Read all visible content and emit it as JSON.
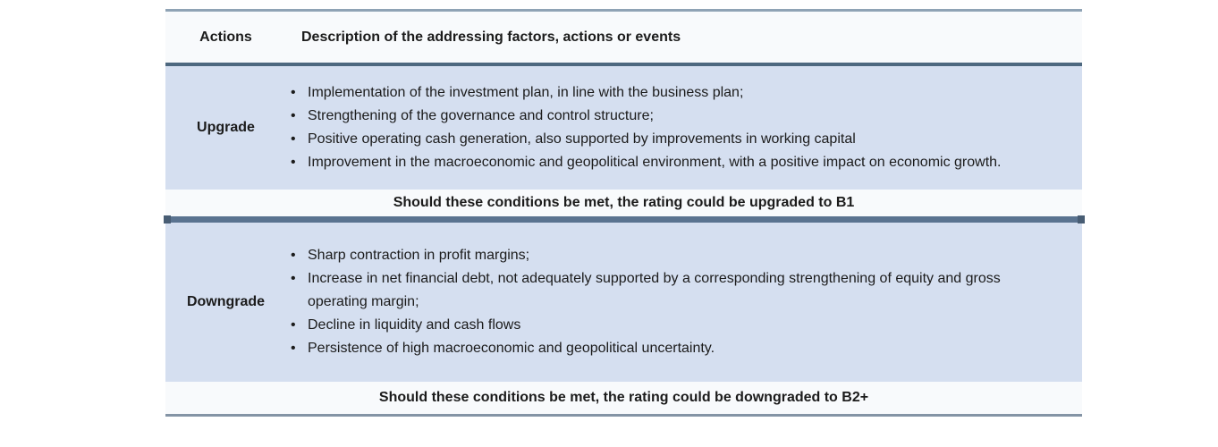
{
  "header": {
    "col_action": "Actions",
    "col_description": "Description of the addressing factors, actions or events"
  },
  "sections": [
    {
      "action": "Upgrade",
      "bullets": [
        "Implementation of the investment plan, in line with the business plan;",
        "Strengthening of the governance and control structure;",
        "Positive operating cash generation, also supported by improvements in working capital",
        "Improvement in the macroeconomic and geopolitical environment, with a positive impact on economic growth."
      ],
      "summary": "Should these conditions be met, the rating could be upgraded to B1"
    },
    {
      "action": "Downgrade",
      "bullets": [
        "Sharp contraction in profit margins;",
        "Increase in net financial debt, not adequately supported by a corresponding strengthening of equity and gross operating margin;",
        "Decline in liquidity and cash flows",
        "Persistence of high macroeconomic and geopolitical uncertainty."
      ],
      "summary": "Should these conditions be met, the rating could be downgraded to B2+"
    }
  ],
  "colors": {
    "row_blue": "#d5dff0",
    "bg_light": "#f8fafc",
    "border_light": "#8fa3b5",
    "border_mid": "#8494a5",
    "border_dark": "#4d687f",
    "divider": "#5a7390",
    "handle": "#485d74",
    "text": "#1b1b1b"
  }
}
